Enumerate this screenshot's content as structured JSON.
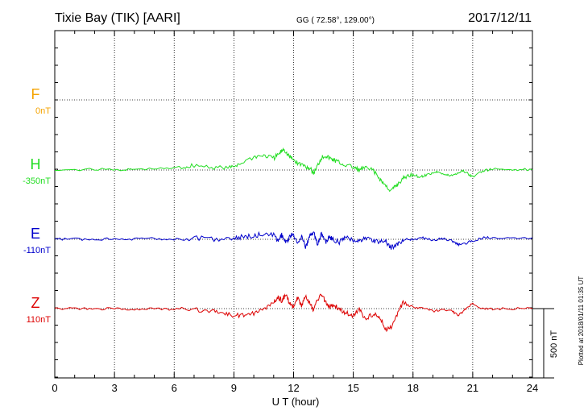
{
  "chart_data": {
    "type": "line",
    "station": "Tixie Bay (TIK)  [AARI]",
    "coords": "GG ( 72.58°, 129.00°)",
    "date": "2017/12/11",
    "xlabel": "U T (hour)",
    "xlim": [
      0,
      24
    ],
    "xticks": [
      "0",
      "3",
      "6",
      "9",
      "12",
      "15",
      "18",
      "21",
      "24"
    ],
    "scale_label": "500 nT",
    "scale_nT": 500,
    "plotted_note": "Plotted at 2018/01/11 01:35 UT",
    "grid": true,
    "series": [
      {
        "name": "F",
        "offset_label": "0nT",
        "color": "#f5a300",
        "baseline_nT": 0,
        "x": [],
        "y": []
      },
      {
        "name": "H",
        "offset_label": "-350nT",
        "color": "#22dd22",
        "baseline_nT": -350,
        "x": [
          0,
          2,
          3.5,
          4,
          5.5,
          6.5,
          7,
          8,
          8.8,
          9.2,
          10,
          10.5,
          11,
          11.3,
          11.5,
          11.7,
          11.9,
          12.2,
          12.5,
          12.8,
          13,
          13.2,
          13.4,
          13.6,
          13.8,
          14,
          14.2,
          14.5,
          15,
          15.3,
          15.6,
          16,
          16.3,
          16.6,
          16.9,
          17.1,
          17.3,
          17.6,
          18,
          18.3,
          18.6,
          19,
          19.3,
          19.6,
          19.9,
          20.2,
          20.5,
          20.8,
          21,
          21.5,
          22,
          23,
          24
        ],
        "y": [
          -350,
          -345,
          -348,
          -345,
          -340,
          -330,
          -315,
          -330,
          -335,
          -310,
          -255,
          -245,
          -265,
          -230,
          -195,
          -240,
          -265,
          -300,
          -315,
          -335,
          -375,
          -320,
          -260,
          -245,
          -265,
          -275,
          -290,
          -310,
          -330,
          -350,
          -335,
          -355,
          -410,
          -460,
          -500,
          -470,
          -440,
          -400,
          -380,
          -400,
          -390,
          -370,
          -360,
          -385,
          -390,
          -375,
          -355,
          -380,
          -400,
          -355,
          -345,
          -345,
          -348
        ]
      },
      {
        "name": "E",
        "offset_label": "-110nT",
        "color": "#0000cc",
        "baseline_nT": -110,
        "x": [
          0,
          1,
          2,
          3,
          4,
          5,
          6,
          7,
          8,
          9,
          9.5,
          10,
          10.5,
          11,
          11.2,
          11.4,
          11.6,
          11.8,
          12,
          12.2,
          12.4,
          12.6,
          12.8,
          13,
          13.2,
          13.4,
          13.6,
          13.8,
          14,
          14.3,
          14.6,
          15,
          15.3,
          15.6,
          16,
          16.3,
          16.6,
          16.9,
          17.2,
          17.5,
          18,
          18.5,
          19,
          19.5,
          20,
          20.3,
          20.6,
          21,
          21.5,
          22,
          23,
          24
        ],
        "y": [
          -110,
          -108,
          -112,
          -105,
          -108,
          -104,
          -110,
          -100,
          -108,
          -100,
          -90,
          -85,
          -70,
          -80,
          -125,
          -80,
          -140,
          -90,
          -70,
          -150,
          -80,
          -170,
          -90,
          -60,
          -140,
          -70,
          -130,
          -90,
          -115,
          -130,
          -100,
          -115,
          -125,
          -100,
          -120,
          -130,
          -120,
          -170,
          -150,
          -120,
          -110,
          -100,
          -115,
          -105,
          -125,
          -150,
          -140,
          -120,
          -100,
          -98,
          -100,
          -98
        ]
      },
      {
        "name": "Z",
        "offset_label": "110nT",
        "color": "#dd0000",
        "baseline_nT": 110,
        "x": [
          0,
          1,
          2,
          3,
          4,
          5,
          6,
          7,
          8,
          8.5,
          9,
          9.5,
          10,
          10.5,
          11,
          11.2,
          11.4,
          11.6,
          11.8,
          12,
          12.2,
          12.4,
          12.6,
          12.8,
          13,
          13.2,
          13.4,
          13.6,
          13.8,
          14,
          14.3,
          14.6,
          15,
          15.3,
          15.6,
          16,
          16.3,
          16.6,
          16.9,
          17.2,
          17.5,
          18,
          18.5,
          19,
          19.5,
          20,
          20.3,
          20.6,
          21,
          21.5,
          22,
          23,
          24
        ],
        "y": [
          110,
          112,
          108,
          110,
          106,
          108,
          104,
          100,
          95,
          80,
          60,
          60,
          75,
          110,
          150,
          190,
          170,
          210,
          150,
          120,
          190,
          130,
          200,
          150,
          100,
          170,
          215,
          160,
          120,
          140,
          110,
          80,
          60,
          100,
          40,
          70,
          60,
          -40,
          -20,
          60,
          150,
          120,
          110,
          90,
          100,
          90,
          60,
          100,
          150,
          110,
          108,
          110,
          112
        ]
      }
    ]
  }
}
